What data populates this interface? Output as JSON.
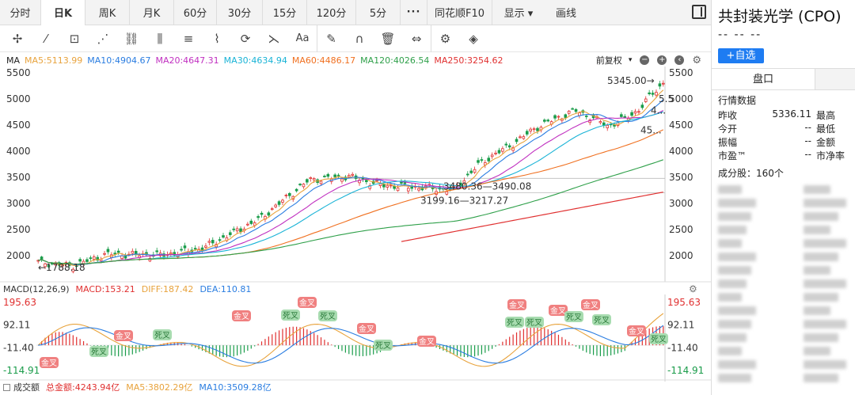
{
  "tabs": [
    "分时",
    "日K",
    "周K",
    "月K",
    "60分",
    "30分",
    "15分",
    "120分",
    "5分",
    "···",
    "同花顺F10",
    "显示 ▾",
    "画线"
  ],
  "active_tab": 1,
  "toolbar_icons": [
    "crosshair-icon",
    "line-icon",
    "rect-icon",
    "fan-icon",
    "channel-icon",
    "parallel-icon",
    "text-list-icon",
    "wave-icon",
    "cycle-icon",
    "pitchfork-icon",
    "font-icon",
    "pen-icon",
    "magnet-icon",
    "trash-icon",
    "arrows-icon",
    "gear-icon",
    "layers-icon"
  ],
  "toolbar_glyphs": [
    "✢",
    "⁄",
    "⊡",
    "⋰",
    "⛓",
    "⫼",
    "≡",
    "⌇",
    "⟳",
    "⋋",
    "Aa",
    "✎",
    "∩",
    "🗑",
    "⇔",
    "⚙",
    "◈"
  ],
  "ma_legend": {
    "label": "MA",
    "items": [
      {
        "text": "MA5:5113.99",
        "color": "#e8a33d"
      },
      {
        "text": "MA10:4904.67",
        "color": "#2a7de1"
      },
      {
        "text": "MA20:4647.31",
        "color": "#c030c0"
      },
      {
        "text": "MA30:4634.94",
        "color": "#19b3d6"
      },
      {
        "text": "MA60:4486.17",
        "color": "#f07020"
      },
      {
        "text": "MA120:4026.54",
        "color": "#2fa04a"
      },
      {
        "text": "MA250:3254.62",
        "color": "#e03030"
      }
    ],
    "adjust": "前复权"
  },
  "price_chart": {
    "y_ticks": [
      5500,
      5000,
      4500,
      4000,
      3500,
      3000,
      2500,
      2000
    ],
    "annotations": {
      "high": "5345.00→",
      "low": "←1788.18",
      "range1": "3480.36—3490.08",
      "range2": "3199.16—3217.27",
      "right1": "5.5",
      "right2": "4...",
      "right3": "45..."
    }
  },
  "macd": {
    "label": "MACD(12,26,9)",
    "items": [
      {
        "text": "MACD:153.21",
        "color": "#e03030"
      },
      {
        "text": "DIFF:187.42",
        "color": "#e8a33d"
      },
      {
        "text": "DEA:110.81",
        "color": "#2a7de1"
      }
    ],
    "y_ticks": [
      "195.63",
      "92.11",
      "-11.40",
      "-114.91"
    ],
    "golden": "金叉",
    "dead": "死叉"
  },
  "volume": {
    "label": "成交额",
    "items": [
      {
        "text": "总金额:4243.94亿",
        "color": "#e03030"
      },
      {
        "text": "MA5:3802.29亿",
        "color": "#e8a33d"
      },
      {
        "text": "MA10:3509.28亿",
        "color": "#2a7de1"
      }
    ]
  },
  "panel": {
    "title": "共封装光学 (CPO)",
    "price": "-- -- --",
    "watch": "+自选",
    "tab": "盘口",
    "section": "行情数据",
    "rows": [
      {
        "k": "昨收",
        "v": "5336.11",
        "k2": "最高"
      },
      {
        "k": "今开",
        "v": "--",
        "k2": "最低"
      },
      {
        "k": "振幅",
        "v": "--",
        "k2": "金额"
      },
      {
        "k": "市盈™",
        "v": "--",
        "k2": "市净率"
      }
    ],
    "constituents": "成分股：160个"
  }
}
